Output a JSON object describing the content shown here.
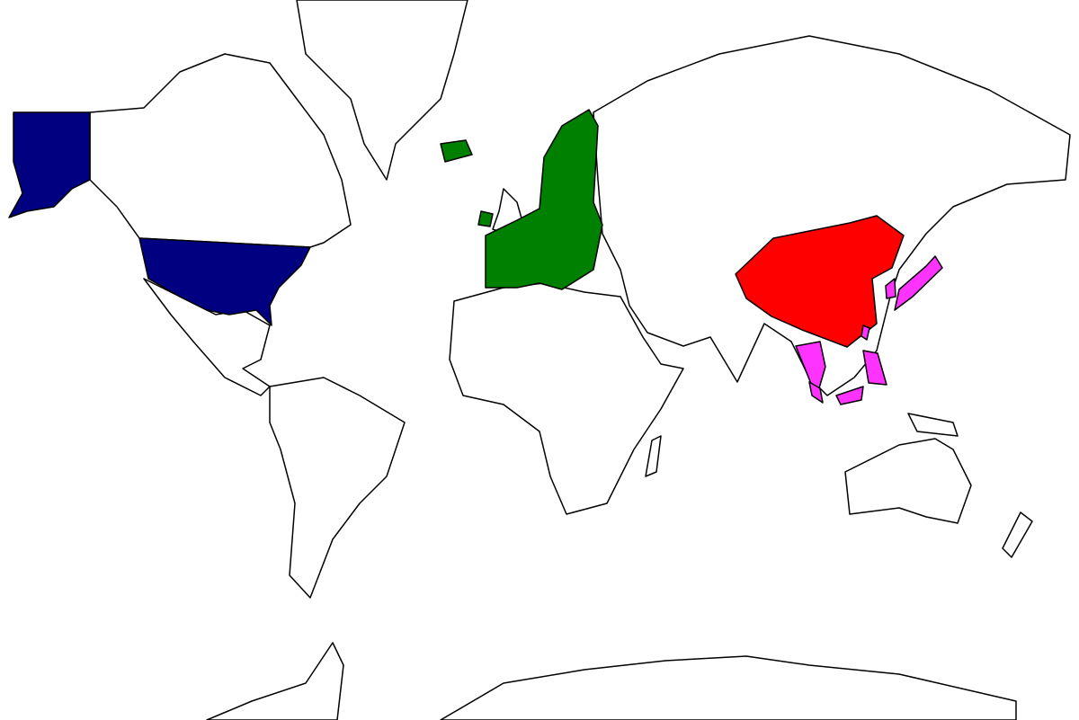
{
  "map": {
    "projection": "mercator",
    "base_fill": "#ffffff",
    "border_color": "#000000",
    "highlight_groups": [
      {
        "id": "usa",
        "color": "#000080",
        "regions": [
          "alaska",
          "contiguous-us"
        ]
      },
      {
        "id": "europe",
        "color": "#008000",
        "regions": [
          "europe",
          "iceland",
          "ireland"
        ]
      },
      {
        "id": "china",
        "color": "#ff0000",
        "regions": [
          "china"
        ]
      },
      {
        "id": "east-southeast-asia",
        "color": "#ff33ff",
        "regions": [
          "japan",
          "korea",
          "taiwan",
          "thailand",
          "philippines",
          "malaysia",
          "indonesia-borneo"
        ]
      }
    ]
  }
}
